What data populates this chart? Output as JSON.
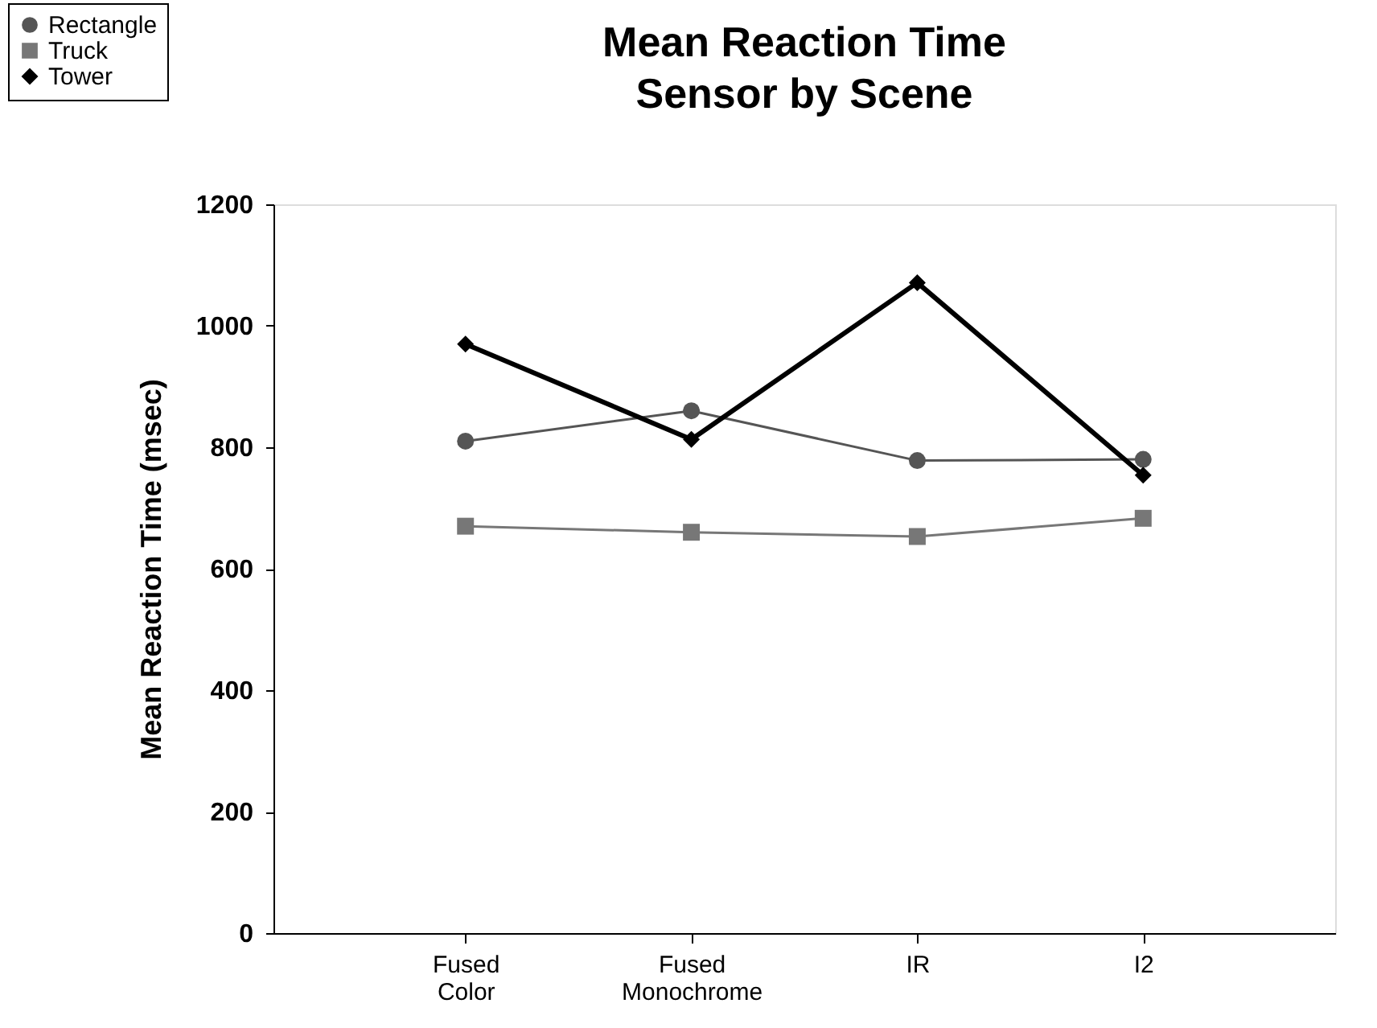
{
  "chart_data": {
    "type": "line",
    "title": "Mean Reaction Time",
    "subtitle": "Sensor by Scene",
    "ylabel": "Mean Reaction Time (msec)",
    "categories": [
      "Fused Color",
      "Fused Monochrome",
      "IR",
      "I2"
    ],
    "series": [
      {
        "name": "Rectangle",
        "color": "#555555",
        "marker": "circle",
        "values": [
          810,
          860,
          778,
          780
        ]
      },
      {
        "name": "Truck",
        "color": "#777777",
        "marker": "square",
        "values": [
          670,
          660,
          653,
          683
        ]
      },
      {
        "name": "Tower",
        "color": "#000000",
        "marker": "diamond",
        "values": [
          970,
          813,
          1071,
          754
        ]
      }
    ],
    "ylim": [
      0,
      1200
    ],
    "yticks": [
      0,
      200,
      400,
      600,
      800,
      1000,
      1200
    ],
    "grid": false,
    "legend": "top left",
    "line_style": "solid"
  }
}
